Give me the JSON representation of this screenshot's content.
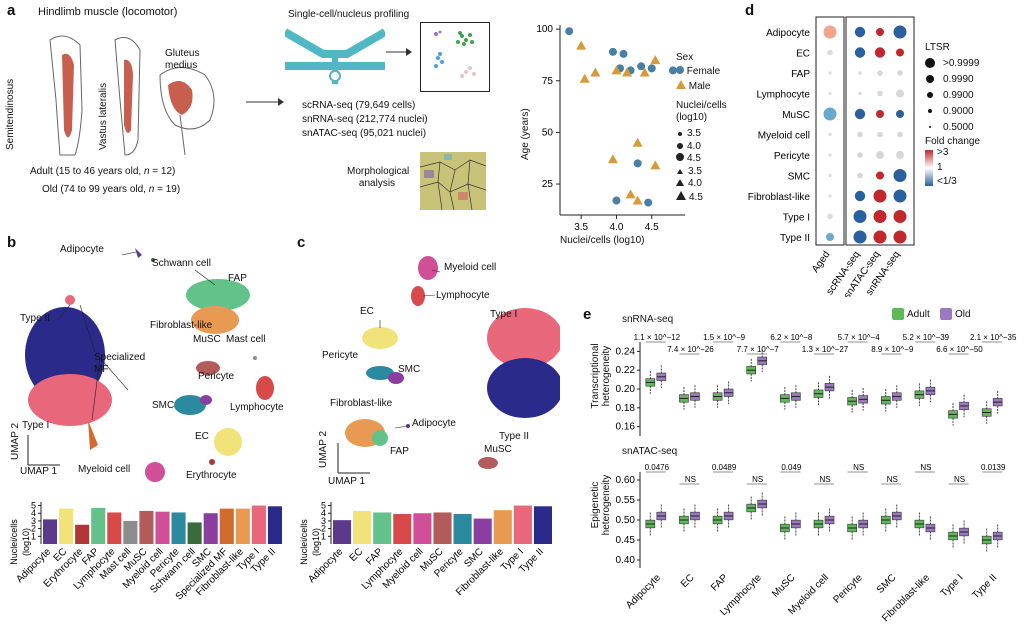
{
  "panel_labels": {
    "a": "a",
    "b": "b",
    "c": "c",
    "d": "d",
    "e": "e"
  },
  "panel_a": {
    "title": "Hindlimb muscle (locomotor)",
    "muscles": [
      "Semitendinosus",
      "Vastus lateralis",
      "Gluteus medius"
    ],
    "profiling_title": "Single-cell/nucleus profiling",
    "counts": [
      "scRNA-seq (79,649 cells)",
      "snRNA-seq (212,774 nuclei)",
      "snATAC-seq (95,021 nuclei)"
    ],
    "adult_text": "Adult (15 to 46 years old, ",
    "adult_n": "n",
    "adult_tail": " = 12)",
    "old_text": "Old (74 to 99 years old, ",
    "old_n": "n",
    "old_tail": " = 19)",
    "morph": "Morphological analysis"
  },
  "panel_a_scatter": {
    "ylabel": "Age (years)",
    "xlabel": "Nuclei/cells (log10)",
    "yticks": [
      "100",
      "75",
      "50",
      "25"
    ],
    "xticks": [
      "3.5",
      "4.0",
      "4.5"
    ],
    "sex_title": "Sex",
    "sex": [
      "Female",
      "Male"
    ],
    "size_title": "Nuclei/cells (log10)",
    "sizes": [
      "3.5",
      "4.0",
      "4.5",
      "3.5",
      "4.0",
      "4.5"
    ],
    "colors": {
      "female": "#4a7fa3",
      "male": "#d79a3a"
    }
  },
  "chart_data": [
    {
      "type": "scatter",
      "title": "",
      "xlabel": "Nuclei/cells (log10)",
      "ylabel": "Age (years)",
      "xlim": [
        3.2,
        4.9
      ],
      "ylim": [
        10,
        102
      ],
      "series": [
        {
          "name": "Female",
          "points": [
            [
              3.33,
              99
            ],
            [
              3.95,
              89
            ],
            [
              4.1,
              88
            ],
            [
              4.05,
              81
            ],
            [
              4.2,
              80
            ],
            [
              4.35,
              82
            ],
            [
              4.5,
              81
            ],
            [
              4.8,
              80
            ],
            [
              4.3,
              35
            ],
            [
              4.0,
              17
            ],
            [
              4.45,
              16
            ]
          ]
        },
        {
          "name": "Male",
          "points": [
            [
              3.5,
              92
            ],
            [
              3.7,
              79
            ],
            [
              4.0,
              80
            ],
            [
              4.15,
              79
            ],
            [
              4.55,
              85
            ],
            [
              4.4,
              79
            ],
            [
              3.55,
              76
            ],
            [
              3.95,
              37
            ],
            [
              4.3,
              45
            ],
            [
              4.55,
              34
            ],
            [
              4.2,
              20
            ],
            [
              4.3,
              17
            ]
          ]
        }
      ]
    },
    {
      "type": "bar",
      "title": "",
      "ylabel": "Nuclei/cells (log10)",
      "categories": [
        "Adipocyte",
        "EC",
        "Erythrocyte",
        "FAP",
        "Lymphocyte",
        "Mast cell",
        "MuSC",
        "Myeloid cell",
        "Pericyte",
        "Schwann cell",
        "SMC",
        "Specialized MF",
        "Fibroblast-like",
        "Type I",
        "Type II"
      ],
      "values": [
        3.2,
        4.6,
        2.5,
        4.7,
        4.1,
        3.0,
        4.3,
        4.2,
        4.1,
        2.8,
        4.0,
        4.6,
        4.6,
        5.0,
        4.9
      ],
      "yticks": [
        1,
        2,
        3,
        4,
        5
      ],
      "ylim": [
        0,
        5.2
      ],
      "colors": [
        "#5b3a8c",
        "#f2e27a",
        "#b03636",
        "#63c28a",
        "#d84a4a",
        "#8c8c8c",
        "#b35b5b",
        "#d14f96",
        "#2b8aa0",
        "#3a6b3a",
        "#8a3fa0",
        "#d36a2f",
        "#e89a52",
        "#e8677a",
        "#2a2a8a"
      ]
    },
    {
      "type": "bar",
      "title": "",
      "ylabel": "Nuclei/cells (log10)",
      "categories": [
        "Adipocyte",
        "EC",
        "FAP",
        "Lymphocyte",
        "Myeloid cell",
        "MuSC",
        "Pericyte",
        "SMC",
        "Fibroblast-like",
        "Type I",
        "Type II"
      ],
      "values": [
        3.1,
        4.3,
        4.1,
        3.9,
        4.0,
        4.1,
        3.9,
        3.3,
        4.4,
        5.0,
        4.9
      ],
      "yticks": [
        1,
        2,
        3,
        4,
        5
      ],
      "ylim": [
        0,
        5.2
      ],
      "colors": [
        "#5b3a8c",
        "#f2e27a",
        "#63c28a",
        "#d84a4a",
        "#d14f96",
        "#b35b5b",
        "#2b8aa0",
        "#8a3fa0",
        "#e89a52",
        "#e8677a",
        "#2a2a8a"
      ]
    },
    {
      "type": "heatmap",
      "title": "",
      "rows": [
        "Adipocyte",
        "EC",
        "FAP",
        "Lymphocyte",
        "MuSC",
        "Myeloid cell",
        "Pericyte",
        "SMC",
        "Fibroblast-like",
        "Type I",
        "Type II"
      ],
      "columns": [
        "Aged",
        "scRNA-seq",
        "snATAC-seq",
        "snRNA-seq"
      ],
      "fold_change_class": [
        [
          2,
          0,
          2,
          0
        ],
        [
          1,
          0,
          2,
          2
        ],
        [
          1,
          1,
          1,
          1
        ],
        [
          1,
          1,
          1,
          1
        ],
        [
          0,
          0,
          2,
          0
        ],
        [
          1,
          1,
          1,
          1
        ],
        [
          1,
          1,
          1,
          1
        ],
        [
          1,
          1,
          2,
          0
        ],
        [
          1,
          0,
          2,
          0
        ],
        [
          1,
          0,
          2,
          2
        ],
        [
          0,
          0,
          2,
          2
        ]
      ],
      "ltsr": [
        [
          1,
          0.999,
          0.99,
          0.9999
        ],
        [
          0.9,
          0.999,
          0.999,
          0.99
        ],
        [
          0.5,
          0.5,
          0.9,
          0.9
        ],
        [
          0.5,
          0.5,
          0.9,
          0.99
        ],
        [
          1,
          0.999,
          0.99,
          0.99
        ],
        [
          0.5,
          0.9,
          0.9,
          0.9
        ],
        [
          0.5,
          0.9,
          0.99,
          0.99
        ],
        [
          0.5,
          0.9,
          0.99,
          0.9999
        ],
        [
          0.5,
          0.999,
          0.9999,
          0.9999
        ],
        [
          0.9,
          0.9999,
          0.9999,
          0.9999
        ],
        [
          0.99,
          0.9999,
          0.9999,
          0.9999
        ]
      ],
      "legend": {
        "ltsr_title": "LTSR",
        "ltsr_labels": [
          ">0.9999",
          "0.9990",
          "0.9900",
          "0.9000",
          "0.5000"
        ],
        "fc_title": "Fold change",
        "fc_labels": [
          ">3",
          "1",
          "<1/3"
        ]
      }
    },
    {
      "type": "box",
      "title": "snRNA-seq",
      "ylabel": "Transcriptional heterogeneity",
      "yticks": [
        "0.24",
        "0.22",
        "0.20",
        "0.18",
        "0.16"
      ],
      "ylim": [
        0.15,
        0.25
      ],
      "categories": [
        "Adipocyte",
        "EC",
        "FAP",
        "Lymphocyte",
        "MuSC",
        "Myeloid cell",
        "Pericyte",
        "SMC",
        "Fibroblast-like",
        "Type I",
        "Type II"
      ],
      "series": [
        {
          "name": "Adult",
          "medians": [
            0.207,
            0.19,
            0.192,
            0.22,
            0.19,
            0.195,
            0.187,
            0.188,
            0.194,
            0.173,
            0.175
          ]
        },
        {
          "name": "Old",
          "medians": [
            0.213,
            0.192,
            0.196,
            0.23,
            0.192,
            0.202,
            0.189,
            0.192,
            0.198,
            0.182,
            0.186
          ]
        }
      ],
      "pvalues": [
        "1.1 × 10^−12",
        "7.4 × 10^−26",
        "1.5 × 10^−9",
        "7.7 × 10^−7",
        "6.2 × 10^−8",
        "1.3 × 10^−27",
        "5.7 × 10^−4",
        "8.9 × 10^−9",
        "5.2 × 10^−39",
        "6.6 × 10^−50",
        "2.1 × 10^−35"
      ]
    },
    {
      "type": "box",
      "title": "snATAC-seq",
      "ylabel": "Epigenetic heterogeneity",
      "yticks": [
        "0.60",
        "0.55",
        "0.50",
        "0.45",
        "0.40"
      ],
      "ylim": [
        0.38,
        0.62
      ],
      "categories": [
        "Adipocyte",
        "EC",
        "FAP",
        "Lymphocyte",
        "MuSC",
        "Myeloid cell",
        "Pericyte",
        "SMC",
        "Fibroblast-like",
        "Type I",
        "Type II"
      ],
      "series": [
        {
          "name": "Adult",
          "medians": [
            0.49,
            0.5,
            0.5,
            0.53,
            0.48,
            0.49,
            0.48,
            0.5,
            0.49,
            0.46,
            0.45
          ]
        },
        {
          "name": "Old",
          "medians": [
            0.51,
            0.51,
            0.51,
            0.54,
            0.49,
            0.5,
            0.49,
            0.51,
            0.48,
            0.47,
            0.46
          ]
        }
      ],
      "pvalues": [
        "0.0476",
        "NS",
        "0.0489",
        "NS",
        "0.049",
        "NS",
        "NS",
        "NS",
        "NS",
        "NS",
        "0.0139"
      ]
    }
  ],
  "panel_b": {
    "labels": [
      "Adipocyte",
      "Schwann cell",
      "FAP",
      "Fibroblast-like",
      "Type II",
      "Specialized MF",
      "MuSC",
      "Mast cell",
      "Pericyte",
      "SMC",
      "Lymphocyte",
      "Type I",
      "EC",
      "Erythrocyte",
      "Myeloid cell"
    ],
    "umap1": "UMAP 1",
    "umap2": "UMAP 2"
  },
  "panel_c": {
    "labels": [
      "Myeloid cell",
      "Lymphocyte",
      "EC",
      "Type I",
      "Pericyte",
      "SMC",
      "Fibroblast-like",
      "Adipocyte",
      "FAP",
      "Type II",
      "MuSC"
    ],
    "umap1": "UMAP 1",
    "umap2": "UMAP 2"
  },
  "panel_e_legend": {
    "adult": "Adult",
    "old": "Old",
    "adult_color": "#5fb85a",
    "old_color": "#9b78c0"
  }
}
